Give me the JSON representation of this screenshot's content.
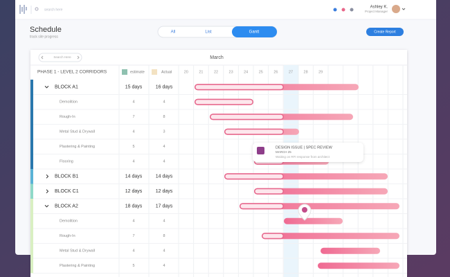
{
  "topbar": {
    "search_placeholder": "search here",
    "user_name": "Ashley K.",
    "user_role": "Project Manager"
  },
  "header": {
    "title": "Schedule",
    "subtitle": "track site progress"
  },
  "view_tabs": [
    "All",
    "List",
    "Gantt"
  ],
  "create_button": "Create Report",
  "gantt": {
    "search": "Search Here",
    "month": "March",
    "phase": "PHASE 1 - LEVEL 2 CORRIDORS",
    "legend": [
      "estimate",
      "Actual"
    ],
    "days": [
      "20",
      "21",
      "22",
      "23",
      "24",
      "25",
      "26",
      "27",
      "28",
      "29"
    ],
    "rows": [
      {
        "name": "BLOCK A1",
        "estimate": "15 days",
        "actual": "16 days"
      },
      {
        "name": "Demolition",
        "estimate": "4",
        "actual": "4"
      },
      {
        "name": "Rough-In",
        "estimate": "7",
        "actual": "8"
      },
      {
        "name": "Metal Stud & Drywall",
        "estimate": "4",
        "actual": "3"
      },
      {
        "name": "Plastering & Painting",
        "estimate": "5",
        "actual": "4"
      },
      {
        "name": "Flooring",
        "estimate": "4",
        "actual": "4"
      },
      {
        "name": "BLOCK B1",
        "estimate": "14 days",
        "actual": "14 days"
      },
      {
        "name": "BLOCK C1",
        "estimate": "12 days",
        "actual": "12 days"
      },
      {
        "name": "BLOCK A2",
        "estimate": "18 days",
        "actual": "17 days"
      },
      {
        "name": "Demolition",
        "estimate": "4",
        "actual": "4"
      },
      {
        "name": "Rough-In",
        "estimate": "7",
        "actual": "8"
      },
      {
        "name": "Metal Stud & Drywall",
        "estimate": "4",
        "actual": "4"
      },
      {
        "name": "Plastering & Painting",
        "estimate": "5",
        "actual": "4"
      }
    ]
  },
  "popup": {
    "title": "DESIGN ISSUE | SPEC REVIEW",
    "date": "MARCH 25",
    "note": "Waiting on RFI response from architect"
  }
}
